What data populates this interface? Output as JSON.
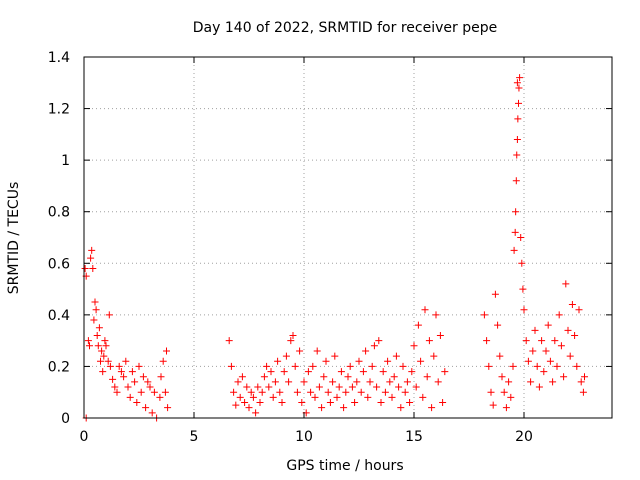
{
  "chart_data": {
    "type": "scatter",
    "title": "Day 140 of 2022, SRMTID for receiver pepe",
    "xlabel": "GPS time / hours",
    "ylabel": "SRMTID / TECUs",
    "xlim": [
      0,
      24
    ],
    "ylim": [
      0,
      1.4
    ],
    "x_ticks": [
      0,
      5,
      10,
      15,
      20
    ],
    "x_tick_labels": [
      "0",
      "5",
      "10",
      "15",
      "20"
    ],
    "y_ticks": [
      0,
      0.2,
      0.4,
      0.6,
      0.8,
      1.0,
      1.2,
      1.4
    ],
    "y_tick_labels": [
      "0",
      "0.2",
      "0.4",
      "0.6",
      "0.8",
      "1",
      "1.2",
      "1.4"
    ],
    "grid": true,
    "marker": "plus",
    "marker_color": "#ff0000",
    "series": [
      {
        "name": "SRMTID",
        "points": [
          [
            0.05,
            0.58
          ],
          [
            0.1,
            0.55
          ],
          [
            0.1,
            0.0
          ],
          [
            0.2,
            0.3
          ],
          [
            0.25,
            0.28
          ],
          [
            0.3,
            0.62
          ],
          [
            0.35,
            0.65
          ],
          [
            0.4,
            0.58
          ],
          [
            0.45,
            0.38
          ],
          [
            0.5,
            0.45
          ],
          [
            0.55,
            0.42
          ],
          [
            0.6,
            0.32
          ],
          [
            0.65,
            0.28
          ],
          [
            0.7,
            0.35
          ],
          [
            0.75,
            0.22
          ],
          [
            0.8,
            0.26
          ],
          [
            0.85,
            0.18
          ],
          [
            0.9,
            0.24
          ],
          [
            0.95,
            0.3
          ],
          [
            1.0,
            0.28
          ],
          [
            1.1,
            0.22
          ],
          [
            1.15,
            0.4
          ],
          [
            1.2,
            0.2
          ],
          [
            1.3,
            0.15
          ],
          [
            1.4,
            0.12
          ],
          [
            1.5,
            0.1
          ],
          [
            1.6,
            0.2
          ],
          [
            1.7,
            0.18
          ],
          [
            1.8,
            0.16
          ],
          [
            1.9,
            0.22
          ],
          [
            2.0,
            0.12
          ],
          [
            2.1,
            0.08
          ],
          [
            2.2,
            0.18
          ],
          [
            2.3,
            0.14
          ],
          [
            2.4,
            0.06
          ],
          [
            2.5,
            0.2
          ],
          [
            2.6,
            0.1
          ],
          [
            2.7,
            0.16
          ],
          [
            2.8,
            0.04
          ],
          [
            2.9,
            0.14
          ],
          [
            3.0,
            0.12
          ],
          [
            3.1,
            0.02
          ],
          [
            3.2,
            0.1
          ],
          [
            3.3,
            0.0
          ],
          [
            3.45,
            0.08
          ],
          [
            3.5,
            0.16
          ],
          [
            3.6,
            0.22
          ],
          [
            3.7,
            0.1
          ],
          [
            3.75,
            0.26
          ],
          [
            3.8,
            0.04
          ],
          [
            6.6,
            0.3
          ],
          [
            6.7,
            0.2
          ],
          [
            6.8,
            0.1
          ],
          [
            6.9,
            0.05
          ],
          [
            7.0,
            0.14
          ],
          [
            7.1,
            0.08
          ],
          [
            7.2,
            0.16
          ],
          [
            7.3,
            0.06
          ],
          [
            7.4,
            0.12
          ],
          [
            7.5,
            0.04
          ],
          [
            7.6,
            0.1
          ],
          [
            7.7,
            0.08
          ],
          [
            7.8,
            0.02
          ],
          [
            7.9,
            0.12
          ],
          [
            8.0,
            0.06
          ],
          [
            8.1,
            0.1
          ],
          [
            8.2,
            0.16
          ],
          [
            8.3,
            0.2
          ],
          [
            8.4,
            0.12
          ],
          [
            8.5,
            0.18
          ],
          [
            8.6,
            0.08
          ],
          [
            8.7,
            0.14
          ],
          [
            8.8,
            0.22
          ],
          [
            8.9,
            0.1
          ],
          [
            9.0,
            0.06
          ],
          [
            9.1,
            0.18
          ],
          [
            9.2,
            0.24
          ],
          [
            9.3,
            0.14
          ],
          [
            9.4,
            0.3
          ],
          [
            9.5,
            0.32
          ],
          [
            9.6,
            0.2
          ],
          [
            9.7,
            0.1
          ],
          [
            9.8,
            0.26
          ],
          [
            9.9,
            0.06
          ],
          [
            10.0,
            0.14
          ],
          [
            10.1,
            0.02
          ],
          [
            10.2,
            0.18
          ],
          [
            10.3,
            0.1
          ],
          [
            10.4,
            0.2
          ],
          [
            10.5,
            0.08
          ],
          [
            10.6,
            0.26
          ],
          [
            10.7,
            0.12
          ],
          [
            10.8,
            0.04
          ],
          [
            10.9,
            0.16
          ],
          [
            11.0,
            0.22
          ],
          [
            11.1,
            0.1
          ],
          [
            11.2,
            0.06
          ],
          [
            11.3,
            0.14
          ],
          [
            11.4,
            0.24
          ],
          [
            11.5,
            0.08
          ],
          [
            11.6,
            0.12
          ],
          [
            11.7,
            0.18
          ],
          [
            11.8,
            0.04
          ],
          [
            11.9,
            0.1
          ],
          [
            12.0,
            0.16
          ],
          [
            12.1,
            0.2
          ],
          [
            12.2,
            0.12
          ],
          [
            12.3,
            0.06
          ],
          [
            12.4,
            0.14
          ],
          [
            12.5,
            0.22
          ],
          [
            12.6,
            0.1
          ],
          [
            12.7,
            0.18
          ],
          [
            12.8,
            0.26
          ],
          [
            12.9,
            0.08
          ],
          [
            13.0,
            0.14
          ],
          [
            13.1,
            0.2
          ],
          [
            13.2,
            0.28
          ],
          [
            13.3,
            0.12
          ],
          [
            13.4,
            0.3
          ],
          [
            13.5,
            0.06
          ],
          [
            13.6,
            0.18
          ],
          [
            13.7,
            0.1
          ],
          [
            13.8,
            0.22
          ],
          [
            13.9,
            0.14
          ],
          [
            14.0,
            0.08
          ],
          [
            14.1,
            0.16
          ],
          [
            14.2,
            0.24
          ],
          [
            14.3,
            0.12
          ],
          [
            14.4,
            0.04
          ],
          [
            14.5,
            0.2
          ],
          [
            14.6,
            0.1
          ],
          [
            14.7,
            0.14
          ],
          [
            14.8,
            0.06
          ],
          [
            14.9,
            0.18
          ],
          [
            15.0,
            0.28
          ],
          [
            15.1,
            0.12
          ],
          [
            15.2,
            0.36
          ],
          [
            15.3,
            0.22
          ],
          [
            15.4,
            0.08
          ],
          [
            15.5,
            0.42
          ],
          [
            15.6,
            0.16
          ],
          [
            15.7,
            0.3
          ],
          [
            15.8,
            0.04
          ],
          [
            15.9,
            0.24
          ],
          [
            16.0,
            0.4
          ],
          [
            16.1,
            0.14
          ],
          [
            16.2,
            0.32
          ],
          [
            16.3,
            0.06
          ],
          [
            16.4,
            0.18
          ],
          [
            18.2,
            0.4
          ],
          [
            18.3,
            0.3
          ],
          [
            18.4,
            0.2
          ],
          [
            18.5,
            0.1
          ],
          [
            18.6,
            0.05
          ],
          [
            18.7,
            0.48
          ],
          [
            18.8,
            0.36
          ],
          [
            18.9,
            0.24
          ],
          [
            19.0,
            0.16
          ],
          [
            19.1,
            0.1
          ],
          [
            19.2,
            0.04
          ],
          [
            19.3,
            0.14
          ],
          [
            19.4,
            0.08
          ],
          [
            19.5,
            0.2
          ],
          [
            19.55,
            0.65
          ],
          [
            19.6,
            0.72
          ],
          [
            19.62,
            0.8
          ],
          [
            19.65,
            0.92
          ],
          [
            19.67,
            1.02
          ],
          [
            19.7,
            1.08
          ],
          [
            19.72,
            1.16
          ],
          [
            19.75,
            1.22
          ],
          [
            19.77,
            1.28
          ],
          [
            19.8,
            1.32
          ],
          [
            19.7,
            1.3
          ],
          [
            19.85,
            0.7
          ],
          [
            19.9,
            0.6
          ],
          [
            19.95,
            0.5
          ],
          [
            20.0,
            0.42
          ],
          [
            20.1,
            0.3
          ],
          [
            20.2,
            0.22
          ],
          [
            20.3,
            0.14
          ],
          [
            20.4,
            0.26
          ],
          [
            20.5,
            0.34
          ],
          [
            20.6,
            0.2
          ],
          [
            20.7,
            0.12
          ],
          [
            20.8,
            0.3
          ],
          [
            20.9,
            0.18
          ],
          [
            21.0,
            0.26
          ],
          [
            21.1,
            0.36
          ],
          [
            21.2,
            0.22
          ],
          [
            21.3,
            0.14
          ],
          [
            21.4,
            0.3
          ],
          [
            21.5,
            0.2
          ],
          [
            21.6,
            0.4
          ],
          [
            21.7,
            0.28
          ],
          [
            21.8,
            0.16
          ],
          [
            21.9,
            0.52
          ],
          [
            22.0,
            0.34
          ],
          [
            22.1,
            0.24
          ],
          [
            22.2,
            0.44
          ],
          [
            22.3,
            0.32
          ],
          [
            22.4,
            0.2
          ],
          [
            22.5,
            0.42
          ],
          [
            22.6,
            0.14
          ],
          [
            22.7,
            0.1
          ],
          [
            22.75,
            0.16
          ]
        ]
      }
    ]
  }
}
